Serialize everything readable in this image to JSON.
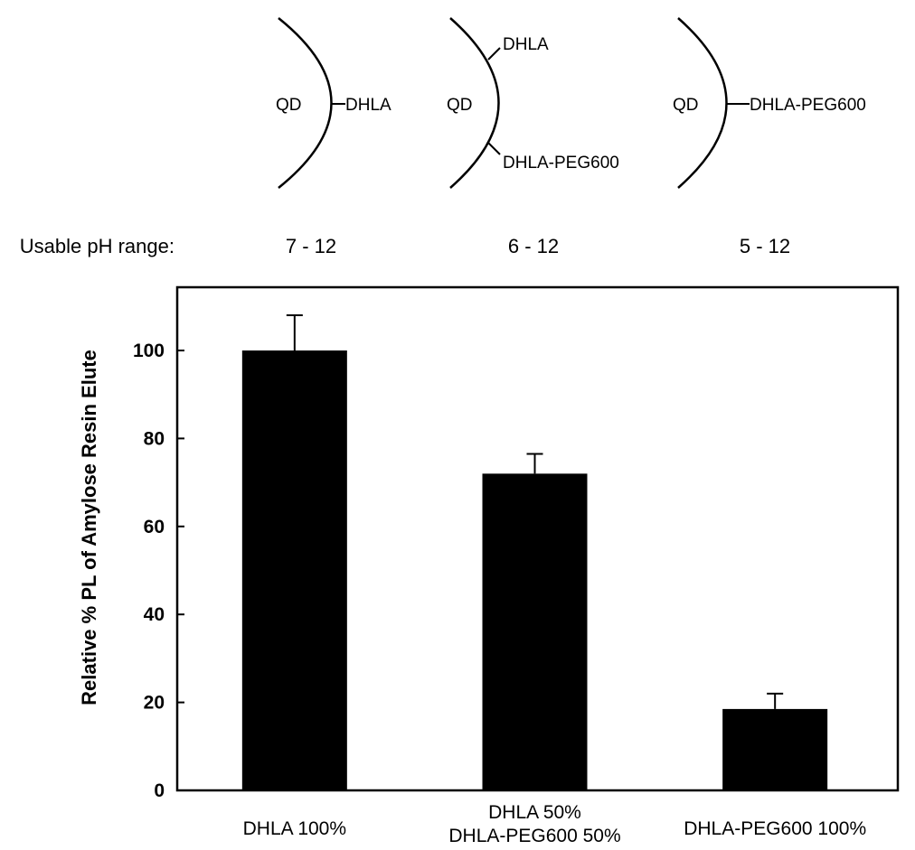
{
  "diagrams": [
    {
      "core_label": "QD",
      "ligands": [
        "DHLA"
      ]
    },
    {
      "core_label": "QD",
      "ligands": [
        "DHLA",
        "DHLA-PEG600"
      ]
    },
    {
      "core_label": "QD",
      "ligands": [
        "DHLA-PEG600"
      ]
    }
  ],
  "ph_row": {
    "label": "Usable pH range:",
    "values": [
      "7 - 12",
      "6 - 12",
      "5 - 12"
    ]
  },
  "chart_data": {
    "type": "bar",
    "categories": [
      [
        "DHLA 100%"
      ],
      [
        "DHLA 50%",
        "DHLA-PEG600 50%"
      ],
      [
        "DHLA-PEG600 100%"
      ]
    ],
    "values": [
      100,
      72,
      18.5
    ],
    "errors": [
      8,
      4.5,
      3.5
    ],
    "ylabel": "Relative % PL of Amylose Resin Elute",
    "ylim": [
      0,
      110
    ],
    "yticks": [
      0,
      20,
      40,
      60,
      80,
      100
    ],
    "bar_color": "#000000",
    "grid": false
  }
}
